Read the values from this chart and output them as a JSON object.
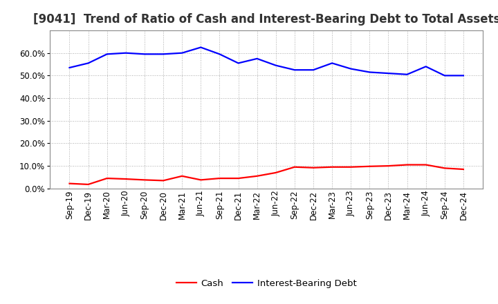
{
  "title": "[9041]  Trend of Ratio of Cash and Interest-Bearing Debt to Total Assets",
  "x_labels": [
    "Sep-19",
    "Dec-19",
    "Mar-20",
    "Jun-20",
    "Sep-20",
    "Dec-20",
    "Mar-21",
    "Jun-21",
    "Sep-21",
    "Dec-21",
    "Mar-22",
    "Jun-22",
    "Sep-22",
    "Dec-22",
    "Mar-23",
    "Jun-23",
    "Sep-23",
    "Dec-23",
    "Mar-24",
    "Jun-24",
    "Sep-24",
    "Dec-24"
  ],
  "cash": [
    2.2,
    1.8,
    4.5,
    4.2,
    3.8,
    3.5,
    5.5,
    3.8,
    4.5,
    4.5,
    5.5,
    7.0,
    9.5,
    9.2,
    9.5,
    9.5,
    9.8,
    10.0,
    10.5,
    10.5,
    9.0,
    8.5
  ],
  "debt": [
    53.5,
    55.5,
    59.5,
    60.0,
    59.5,
    59.5,
    60.0,
    62.5,
    59.5,
    55.5,
    57.5,
    54.5,
    52.5,
    52.5,
    55.5,
    53.0,
    51.5,
    51.0,
    50.5,
    54.0,
    50.0,
    50.0
  ],
  "cash_color": "#ff0000",
  "debt_color": "#0000ff",
  "background_color": "#ffffff",
  "grid_color": "#aaaaaa",
  "ylim": [
    0,
    70
  ],
  "yticks": [
    0,
    10,
    20,
    30,
    40,
    50,
    60
  ],
  "legend_labels": [
    "Cash",
    "Interest-Bearing Debt"
  ],
  "title_fontsize": 12,
  "axis_fontsize": 8.5,
  "legend_fontsize": 9.5
}
